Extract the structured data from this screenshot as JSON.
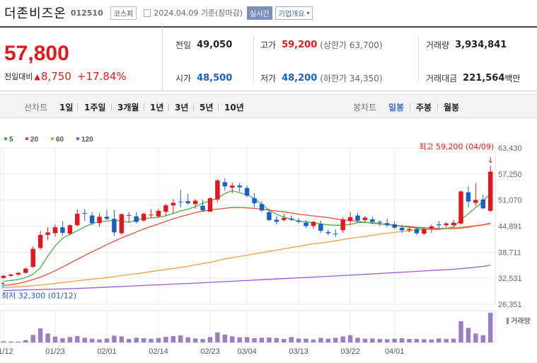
{
  "header": {
    "name": "더존비즈온",
    "code": "012510",
    "market": "코스피",
    "asof": "2024.04.09 기준(장마감)",
    "live": "실시간",
    "info": "기업개요"
  },
  "price": {
    "current": "57,800",
    "change_label": "전일대비",
    "change": "8,750",
    "change_pct": "+17.84%",
    "color": "#e0191f"
  },
  "stats": {
    "prev_label": "전일",
    "prev": "49,050",
    "high_label": "고가",
    "high": "59,200",
    "upper_limit_label": "(상한가 63,700)",
    "volume_label": "거래량",
    "volume": "3,934,841",
    "open_label": "시가",
    "open": "48,500",
    "low_label": "저가",
    "low": "48,200",
    "lower_limit_label": "(하한가 34,350)",
    "value_label": "거래대금",
    "value": "221,564",
    "value_unit": "백만"
  },
  "toolbar": {
    "line_chart_label": "선차트",
    "periods": [
      "1일",
      "1주일",
      "3개월",
      "1년",
      "3년",
      "5년",
      "10년"
    ],
    "candle_chart_label": "봉차트",
    "candle_periods": [
      "일봉",
      "주봉",
      "월봉"
    ],
    "active_candle": "일봉"
  },
  "chart_data": {
    "type": "candlestick",
    "legend": [
      {
        "name": "5",
        "color": "#4caf50"
      },
      {
        "name": "20",
        "color": "#e8503a"
      },
      {
        "name": "60",
        "color": "#f0a040"
      },
      {
        "name": "120",
        "color": "#9b59d0"
      }
    ],
    "y_ticks": [
      "63,430",
      "57,250",
      "51,070",
      "44,891",
      "38,711",
      "32,531",
      "26,351"
    ],
    "ylim": [
      26351,
      63430
    ],
    "x_ticks": [
      {
        "label": "01/12",
        "index": 0
      },
      {
        "label": "01/23",
        "index": 7
      },
      {
        "label": "02/01",
        "index": 14
      },
      {
        "label": "02/14",
        "index": 21
      },
      {
        "label": "02/23",
        "index": 28
      },
      {
        "label": "03/04",
        "index": 33
      },
      {
        "label": "03/13",
        "index": 40
      },
      {
        "label": "03/22",
        "index": 47
      },
      {
        "label": "04/01",
        "index": 53
      }
    ],
    "annotation_high": "최고 59,200 (04/09)",
    "annotation_low": "최저 32,300 (01/12)",
    "volume_label": "거래량",
    "candles": [
      [
        32600,
        33300,
        32300,
        33100
      ],
      [
        33100,
        33600,
        32900,
        33400
      ],
      [
        33400,
        34000,
        33100,
        33800
      ],
      [
        33800,
        35100,
        33600,
        34800
      ],
      [
        35200,
        40100,
        35000,
        39500
      ],
      [
        39700,
        43700,
        39300,
        42800
      ],
      [
        42800,
        44600,
        41600,
        43400
      ],
      [
        43200,
        45300,
        42400,
        44600
      ],
      [
        44600,
        46100,
        42600,
        43300
      ],
      [
        43100,
        45300,
        42700,
        45100
      ],
      [
        45100,
        48900,
        44800,
        47800
      ],
      [
        48000,
        48900,
        46100,
        47900
      ],
      [
        47400,
        48200,
        45100,
        45600
      ],
      [
        45600,
        47900,
        44700,
        47100
      ],
      [
        47100,
        48800,
        46300,
        46600
      ],
      [
        46600,
        48700,
        42600,
        43400
      ],
      [
        43200,
        47900,
        42800,
        47700
      ],
      [
        47500,
        48200,
        45700,
        47500
      ],
      [
        47200,
        48200,
        45500,
        45900
      ],
      [
        46200,
        48100,
        45900,
        47800
      ],
      [
        47500,
        48900,
        46700,
        47600
      ],
      [
        47200,
        49000,
        46800,
        48500
      ],
      [
        48300,
        50200,
        47300,
        49800
      ],
      [
        49800,
        51300,
        47900,
        50400
      ],
      [
        50700,
        53500,
        49300,
        50600
      ],
      [
        50800,
        52500,
        50000,
        50300
      ],
      [
        50100,
        51300,
        49000,
        50900
      ],
      [
        49700,
        51100,
        48300,
        48600
      ],
      [
        48300,
        51700,
        48300,
        51500
      ],
      [
        51200,
        56000,
        50600,
        55700
      ],
      [
        55300,
        56200,
        53300,
        54300
      ],
      [
        54000,
        55200,
        52700,
        54500
      ],
      [
        54500,
        55100,
        53100,
        54100
      ],
      [
        53900,
        54500,
        51800,
        52100
      ],
      [
        51500,
        52700,
        49300,
        50300
      ],
      [
        50100,
        50800,
        48200,
        48600
      ],
      [
        48200,
        48900,
        46100,
        46300
      ],
      [
        46400,
        47200,
        45300,
        45900
      ],
      [
        46300,
        47800,
        46000,
        46800
      ],
      [
        46700,
        47400,
        46100,
        46400
      ],
      [
        46200,
        46800,
        45500,
        45900
      ],
      [
        45700,
        46300,
        44400,
        44900
      ],
      [
        44900,
        46100,
        44300,
        45900
      ],
      [
        45400,
        46200,
        43300,
        43800
      ],
      [
        43500,
        44100,
        42700,
        43200
      ],
      [
        43100,
        44100,
        42300,
        43000
      ],
      [
        43900,
        47000,
        43300,
        46400
      ],
      [
        46100,
        48200,
        45100,
        47000
      ],
      [
        47400,
        48000,
        45800,
        46200
      ],
      [
        46300,
        47300,
        45700,
        46900
      ],
      [
        46500,
        47100,
        45300,
        45900
      ],
      [
        45900,
        46300,
        44900,
        45700
      ],
      [
        45600,
        46700,
        44700,
        45100
      ],
      [
        45300,
        46000,
        44200,
        44500
      ],
      [
        44500,
        45200,
        43300,
        43900
      ],
      [
        43900,
        44800,
        43400,
        44200
      ],
      [
        44200,
        44600,
        42800,
        43200
      ],
      [
        43100,
        44600,
        42700,
        44100
      ],
      [
        44300,
        45300,
        43300,
        44800
      ],
      [
        45300,
        46100,
        44300,
        45100
      ],
      [
        45100,
        45800,
        44600,
        45500
      ],
      [
        45100,
        46400,
        44900,
        45700
      ],
      [
        45500,
        53300,
        45300,
        53100
      ],
      [
        52900,
        54300,
        49300,
        50700
      ],
      [
        50400,
        55100,
        49600,
        51100
      ],
      [
        51200,
        52300,
        48900,
        49100
      ],
      [
        48500,
        59200,
        48200,
        57800
      ]
    ],
    "volume": [
      55,
      40,
      38,
      100,
      320,
      600,
      380,
      250,
      180,
      230,
      270,
      200,
      160,
      130,
      170,
      290,
      260,
      150,
      200,
      180,
      160,
      190,
      240,
      270,
      300,
      220,
      170,
      150,
      230,
      430,
      330,
      260,
      220,
      230,
      180,
      200,
      210,
      190,
      150,
      230,
      170,
      160,
      130,
      190,
      160,
      200,
      260,
      310,
      200,
      160,
      170,
      150,
      140,
      160,
      180,
      150,
      150,
      140,
      130,
      170,
      150,
      160,
      900,
      620,
      380,
      310,
      1260
    ],
    "ma5": [
      31800,
      32000,
      32200,
      32700,
      33500,
      35000,
      37800,
      40200,
      42000,
      42900,
      43800,
      44700,
      45500,
      45900,
      46100,
      46300,
      46100,
      45800,
      46300,
      46700,
      46800,
      47000,
      47300,
      47900,
      48500,
      48900,
      49500,
      50300,
      50900,
      51500,
      52600,
      53300,
      52800,
      52300,
      51400,
      50000,
      48700,
      47700,
      47000,
      46500,
      46000,
      45900,
      45700,
      45400,
      45200,
      45100,
      45100,
      45300,
      45700,
      45800,
      45700,
      45500,
      45300,
      45000,
      44800,
      44600,
      44400,
      44200,
      44100,
      44100,
      44300,
      44700,
      46400,
      47800,
      49300,
      50700,
      52800
    ],
    "ma20": [
      30800,
      31000,
      31300,
      31700,
      32200,
      32800,
      33500,
      34300,
      35200,
      36100,
      37000,
      37900,
      38800,
      39600,
      40500,
      41300,
      42100,
      42800,
      43500,
      44200,
      44800,
      45400,
      46000,
      46600,
      47100,
      47600,
      48100,
      48400,
      48700,
      48900,
      49100,
      49300,
      49300,
      49200,
      49100,
      48900,
      48700,
      48500,
      48300,
      48000,
      47700,
      47500,
      47300,
      47100,
      46900,
      46600,
      46400,
      46200,
      46000,
      45800,
      45600,
      45400,
      45300,
      45100,
      44900,
      44800,
      44600,
      44500,
      44400,
      44300,
      44300,
      44300,
      44400,
      44600,
      44900,
      45200,
      45600
    ],
    "ma60": [
      30300,
      30400,
      30500,
      30600,
      30750,
      30900,
      31100,
      31300,
      31500,
      31700,
      31900,
      32100,
      32300,
      32500,
      32700,
      32900,
      33150,
      33400,
      33600,
      33850,
      34100,
      34350,
      34600,
      34850,
      35100,
      35350,
      35700,
      36000,
      36300,
      36700,
      37100,
      37400,
      37700,
      38000,
      38300,
      38600,
      38900,
      39200,
      39500,
      39800,
      40100,
      40400,
      40700,
      40900,
      41100,
      41400,
      41700,
      42000,
      42200,
      42400,
      42700,
      43000,
      43200,
      43400,
      43600,
      43800,
      43950,
      44100,
      44200,
      44300,
      44400,
      44500,
      44600,
      44800,
      45000,
      45200,
      45400
    ],
    "ma120": [
      29600,
      29650,
      29700,
      29750,
      29800,
      29850,
      29900,
      29950,
      30000,
      30050,
      30100,
      30170,
      30250,
      30330,
      30410,
      30490,
      30570,
      30650,
      30730,
      30810,
      30890,
      30970,
      31050,
      31130,
      31210,
      31290,
      31370,
      31450,
      31540,
      31630,
      31720,
      31810,
      31900,
      31990,
      32080,
      32170,
      32260,
      32350,
      32440,
      32530,
      32620,
      32710,
      32800,
      32890,
      32980,
      33070,
      33160,
      33250,
      33350,
      33450,
      33550,
      33650,
      33750,
      33850,
      33950,
      34050,
      34150,
      34250,
      34350,
      34450,
      34550,
      34650,
      34800,
      34950,
      35150,
      35350,
      35600
    ]
  }
}
